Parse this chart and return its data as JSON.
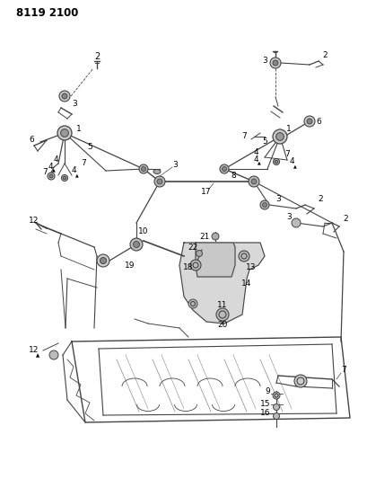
{
  "title": "8119 2100",
  "bg_color": "#ffffff",
  "line_color": "#444444",
  "text_color": "#000000",
  "title_fontsize": 8.5,
  "label_fontsize": 6.5,
  "fig_width": 4.1,
  "fig_height": 5.33,
  "dpi": 100
}
